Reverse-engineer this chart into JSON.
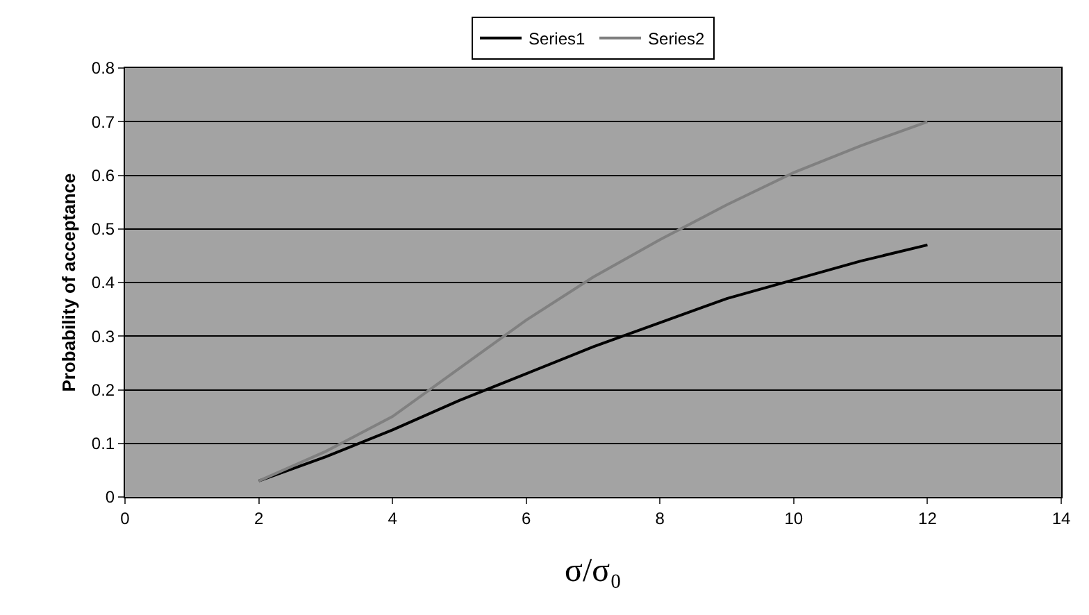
{
  "chart_data": {
    "type": "line",
    "xlabel": "σ/σ₀",
    "ylabel": "Probability of acceptance",
    "x": [
      2,
      3,
      4,
      5,
      6,
      7,
      8,
      9,
      10,
      11,
      12
    ],
    "series": [
      {
        "name": "Series1",
        "color": "#000000",
        "values": [
          0.03,
          0.075,
          0.125,
          0.18,
          0.23,
          0.28,
          0.325,
          0.37,
          0.405,
          0.44,
          0.47
        ]
      },
      {
        "name": "Series2",
        "color": "#808080",
        "values": [
          0.03,
          0.085,
          0.15,
          0.24,
          0.33,
          0.41,
          0.48,
          0.545,
          0.605,
          0.655,
          0.7
        ]
      }
    ],
    "xlim": [
      0,
      14
    ],
    "xticks": [
      0,
      2,
      4,
      6,
      8,
      10,
      12,
      14
    ],
    "ylim": [
      0,
      0.8
    ],
    "yticks": [
      0,
      0.1,
      0.2,
      0.3,
      0.4,
      0.5,
      0.6,
      0.7,
      0.8
    ],
    "grid": "y",
    "legend": "top",
    "marker": "none",
    "line_style": "solid"
  }
}
